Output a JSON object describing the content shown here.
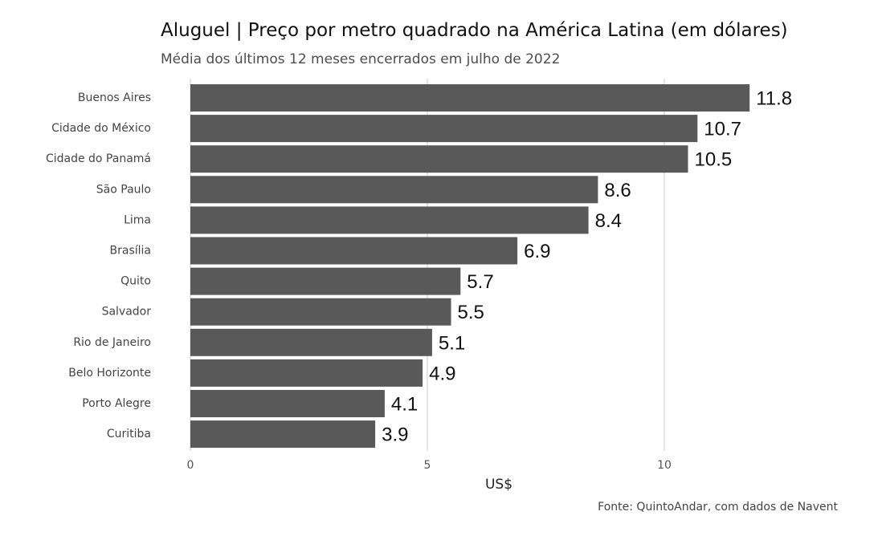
{
  "title": "Aluguel | Preço por metro quadrado na América Latina (em dólares)",
  "subtitle": "Média dos últimos 12 meses encerrados em julho de 2022",
  "caption": "Fonte: QuintoAndar, com dados de Navent",
  "chart_data": {
    "type": "bar",
    "orientation": "horizontal",
    "categories": [
      "Buenos Aires",
      "Cidade do México",
      "Cidade do Panamá",
      "São Paulo",
      "Lima",
      "Brasília",
      "Quito",
      "Salvador",
      "Rio de Janeiro",
      "Belo Horizonte",
      "Porto Alegre",
      "Curitiba"
    ],
    "values": [
      11.8,
      10.7,
      10.5,
      8.6,
      8.4,
      6.9,
      5.7,
      5.5,
      5.1,
      4.9,
      4.1,
      3.9
    ],
    "data_labels": [
      "11.8",
      "10.7",
      "10.5",
      "8.6",
      "8.4",
      "6.9",
      "5.7",
      "5.5",
      "5.1",
      "4.9",
      "4.1",
      "3.9"
    ],
    "xlabel": "US$",
    "ylabel": "",
    "xlim": [
      0,
      13.5
    ],
    "xticks": [
      0,
      5,
      10
    ],
    "xtick_labels": [
      "0",
      "5",
      "10"
    ],
    "grid": true,
    "legend": "none",
    "bar_color": "#595959",
    "grid_color": "#e5e5e5"
  }
}
